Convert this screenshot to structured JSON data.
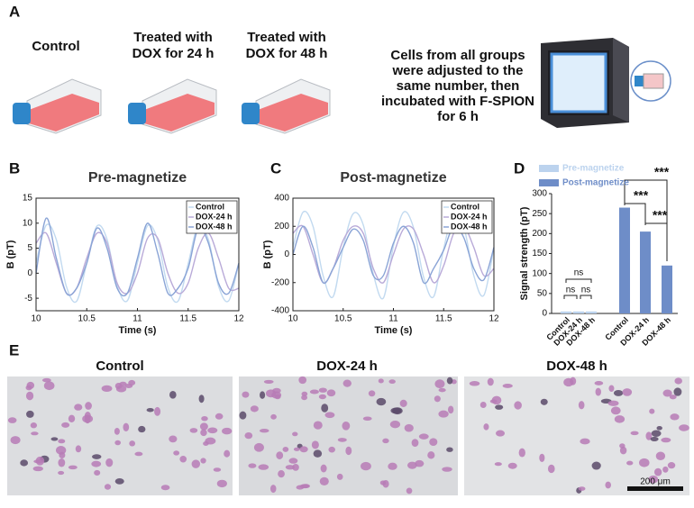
{
  "panel_labels": [
    "A",
    "B",
    "C",
    "D",
    "E"
  ],
  "panel_a": {
    "groups": [
      [
        "Control"
      ],
      [
        "Treated with",
        "DOX for 24 h"
      ],
      [
        "Treated with",
        "DOX for 48 h"
      ]
    ],
    "note": [
      "Cells from all groups",
      "were adjusted to the",
      "same number, then",
      "incubated with F-SPION",
      "for 6 h"
    ]
  },
  "chart_data": [
    {
      "type": "line",
      "title": "Pre-magnetize",
      "x_label": "Time (s)",
      "y_label": "B (pT)",
      "x": [
        10,
        10.1,
        10.2,
        10.3,
        10.4,
        10.5,
        10.6,
        10.7,
        10.8,
        10.9,
        11,
        11.1,
        11.2,
        11.3,
        11.4,
        11.5,
        11.6,
        11.7,
        11.8,
        11.9,
        12
      ],
      "xlim": [
        10,
        12
      ],
      "xticks": [
        10,
        10.5,
        11,
        11.5,
        12
      ],
      "ylim": [
        -7.5,
        15
      ],
      "yticks": [
        -5,
        0,
        5,
        10,
        15
      ],
      "legend": "top-right",
      "series": [
        {
          "name": "Control",
          "color": "#c2daf0",
          "values": [
            2,
            9.6,
            6.7,
            -2.7,
            -5.6,
            2,
            9.4,
            6.8,
            -2.5,
            -5.5,
            2.1,
            9.5,
            6.6,
            -2.8,
            -5.6,
            1.9,
            9.6,
            6.7,
            -2.6,
            -5.5,
            2
          ]
        },
        {
          "name": "DOX-24 h",
          "color": "#b9aad8",
          "values": [
            6,
            8,
            2,
            -4,
            -3,
            3,
            8,
            6,
            -2,
            -4,
            0,
            7,
            7,
            0,
            -4,
            -2,
            5,
            8,
            3,
            -3,
            -3
          ]
        },
        {
          "name": "DOX-48 h",
          "color": "#8aa4d6",
          "values": [
            0,
            11,
            3,
            -4,
            -3,
            2,
            9,
            5,
            -3,
            -4,
            3,
            10,
            4,
            -4,
            -3,
            1,
            9,
            6,
            -2,
            -4,
            2
          ]
        }
      ]
    },
    {
      "type": "line",
      "title": "Post-magnetize",
      "x_label": "Time (s)",
      "y_label": "B (pT)",
      "x": [
        10,
        10.1,
        10.2,
        10.3,
        10.4,
        10.5,
        10.6,
        10.7,
        10.8,
        10.9,
        11,
        11.1,
        11.2,
        11.3,
        11.4,
        11.5,
        11.6,
        11.7,
        11.8,
        11.9,
        12
      ],
      "xlim": [
        10,
        12
      ],
      "xticks": [
        10,
        10.5,
        11,
        11.5,
        12
      ],
      "ylim": [
        -400,
        400
      ],
      "yticks": [
        -400,
        -200,
        0,
        200,
        400
      ],
      "legend": "top-right",
      "series": [
        {
          "name": "Control",
          "color": "#c2daf0",
          "values": [
            50,
            300,
            200,
            -150,
            -300,
            50,
            290,
            210,
            -140,
            -310,
            60,
            300,
            190,
            -160,
            -300,
            40,
            300,
            200,
            -150,
            -290,
            50
          ]
        },
        {
          "name": "DOX-24 h",
          "color": "#b9aad8",
          "values": [
            150,
            200,
            0,
            -200,
            -100,
            100,
            200,
            150,
            -100,
            -200,
            0,
            180,
            180,
            0,
            -200,
            -80,
            150,
            200,
            50,
            -150,
            -100
          ]
        },
        {
          "name": "DOX-48 h",
          "color": "#8aa4d6",
          "values": [
            0,
            200,
            50,
            -200,
            -100,
            50,
            180,
            100,
            -150,
            -150,
            80,
            200,
            80,
            -200,
            -100,
            30,
            200,
            120,
            -100,
            -180,
            50
          ]
        }
      ]
    },
    {
      "type": "bar",
      "y_label": "Signal strength (pT)",
      "categories": [
        "Control",
        "DOX-24 h",
        "DOX-48 h"
      ],
      "ylim": [
        0,
        300
      ],
      "yticks": [
        0,
        50,
        100,
        150,
        200,
        250,
        300
      ],
      "legend": "top-left",
      "series": [
        {
          "name": "Pre-magnetize",
          "color": "#bcd3ee",
          "values": [
            5,
            5,
            5
          ]
        },
        {
          "name": "Post-magnetize",
          "color": "#6e8dc8",
          "values": [
            265,
            205,
            120
          ]
        }
      ],
      "annotations": [
        "ns",
        "ns",
        "ns",
        "***",
        "***",
        "***"
      ]
    }
  ],
  "panel_e": {
    "titles": [
      "Control",
      "DOX-24 h",
      "DOX-48 h"
    ],
    "scale_bar": "200 μm"
  }
}
